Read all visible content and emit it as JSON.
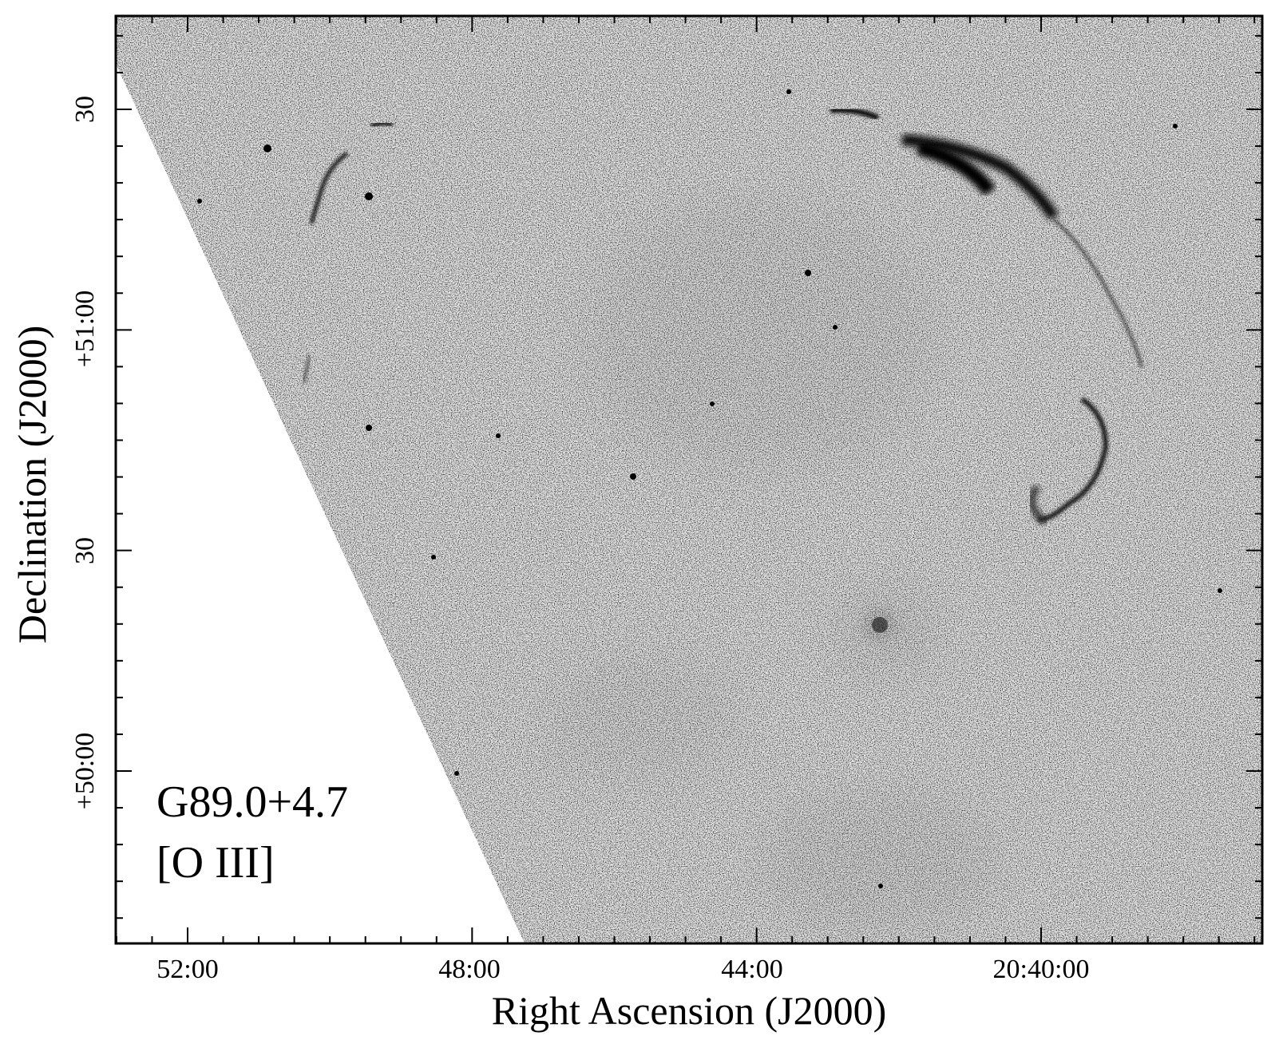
{
  "figure": {
    "object_name": "G89.0+4.7",
    "filter": "[O III]",
    "x_axis": {
      "label": "Right Ascension (J2000)",
      "ticks": [
        "52:00",
        "48:00",
        "44:00",
        "20:40:00"
      ]
    },
    "y_axis": {
      "label": "Declination (J2000)",
      "ticks": [
        "30",
        "+51:00",
        "30",
        "+50:00"
      ]
    },
    "colors": {
      "sky": "#ececec",
      "ink": "#000000",
      "background": "#ffffff"
    }
  }
}
